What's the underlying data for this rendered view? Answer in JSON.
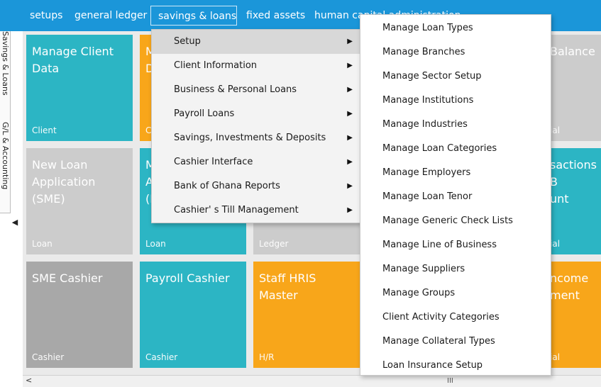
{
  "menubar": {
    "items": [
      "setups",
      "general ledger",
      "savings & loans",
      "fixed assets",
      "human capital administration"
    ],
    "active": "savings & loans"
  },
  "left_tabs": [
    "Savings & Loans",
    "G/L & Accounting"
  ],
  "tiles": [
    {
      "title": "Manage Client\nData",
      "category": "Client",
      "color": "#2cb5c4"
    },
    {
      "title": "M\nD",
      "category": "C",
      "color": "#f8a61a"
    },
    {
      "title": "",
      "category": "",
      "color": "#f8a61a"
    },
    {
      "title": "",
      "category": "",
      "color": "#cccccc"
    },
    {
      "title": "Balance",
      "category": "ial",
      "color": "#cccccc"
    },
    {
      "title": "New Loan\nApplication\n(SME)",
      "category": "Loan",
      "color": "#cccccc"
    },
    {
      "title": "M\nA\n(I",
      "category": "Loan",
      "color": "#2cb5c4"
    },
    {
      "title": "",
      "category": "Ledger",
      "color": "#cccccc"
    },
    {
      "title": "",
      "category": "",
      "color": "#cccccc"
    },
    {
      "title": "sactions B\nunt",
      "category": "ial",
      "color": "#2cb5c4"
    },
    {
      "title": "SME Cashier",
      "category": "Cashier",
      "color": "#a8a8a8"
    },
    {
      "title": "Payroll Cashier",
      "category": "Cashier",
      "color": "#2cb5c4"
    },
    {
      "title": "Staff HRIS\nMaster",
      "category": "H/R",
      "color": "#f8a61a"
    },
    {
      "title": "",
      "category": "",
      "color": "#2cb5c4"
    },
    {
      "title": "ncome\nment",
      "category": "ial",
      "color": "#f8a61a"
    }
  ],
  "submenu": {
    "items": [
      "Setup",
      "Client Information",
      "Business & Personal Loans",
      "Payroll Loans",
      "Savings, Investments & Deposits",
      "Cashier Interface",
      "Bank of Ghana Reports",
      "Cashier' s Till Management"
    ],
    "highlighted": "Setup",
    "arrow_icon": "arrow-right-icon"
  },
  "setup_menu": {
    "items": [
      "Manage Loan Types",
      "Manage Branches",
      "Manage Sector Setup",
      "Manage Institutions",
      "Manage Industries",
      "Manage Loan Categories",
      "Manage Employers",
      "Manage Loan Tenor",
      "Manage Generic Check Lists",
      "Manage Line of Business",
      "Manage Suppliers",
      "Manage Groups",
      "Client Activity Categories",
      "Manage Collateral Types",
      "Loan Insurance Setup"
    ]
  },
  "scroll_left_arrow": "◀",
  "hscroll": {
    "left_arrow": "<",
    "grip": "III"
  },
  "colors": {
    "menubar": "#1b96d9",
    "teal": "#2cb5c4",
    "orange": "#f8a61a",
    "grey": "#cccccc"
  }
}
